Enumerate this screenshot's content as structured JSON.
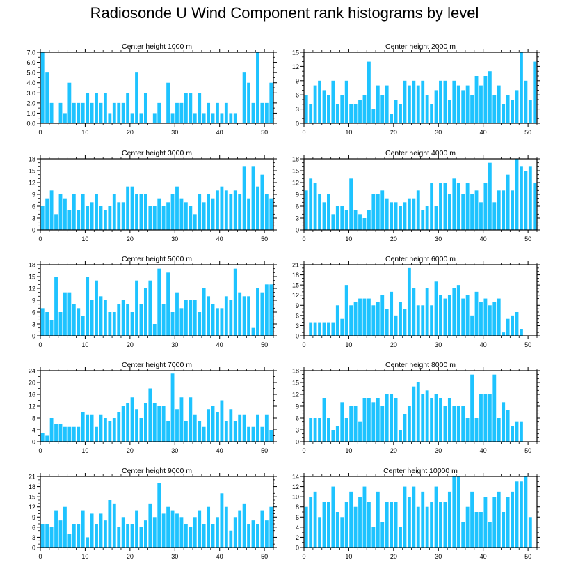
{
  "title": "Radiosonde U Wind Component rank histograms by level",
  "colors": {
    "bar": "#1ec3ff",
    "axis": "#000000"
  },
  "chart_data": [
    {
      "type": "bar",
      "title": "Center height 1000 m",
      "xlabel": "",
      "ylabel": "",
      "xlim": [
        0,
        52
      ],
      "ylim": [
        0,
        7
      ],
      "yticks": [
        0,
        1,
        2,
        3,
        4,
        5,
        6,
        7
      ],
      "ytick_labels": [
        "0.0",
        "1.0",
        "2.0",
        "3.0",
        "4.0",
        "5.0",
        "6.0",
        "7.0"
      ],
      "xticks": [
        0,
        10,
        20,
        30,
        40,
        50
      ],
      "x_start": 0,
      "values": [
        7,
        5,
        2,
        0,
        2,
        1,
        4,
        2,
        2,
        2,
        3,
        2,
        3,
        2,
        3,
        1,
        2,
        2,
        2,
        3,
        1,
        5,
        1,
        3,
        0,
        1,
        2,
        0,
        4,
        1,
        2,
        2,
        3,
        3,
        1,
        3,
        1,
        2,
        1,
        2,
        1,
        2,
        1,
        1,
        0,
        5,
        4,
        2,
        7,
        2,
        2,
        4
      ]
    },
    {
      "type": "bar",
      "title": "Center height 2000 m",
      "xlabel": "",
      "ylabel": "",
      "xlim": [
        0,
        52
      ],
      "ylim": [
        0,
        15
      ],
      "yticks": [
        0,
        3,
        6,
        9,
        12,
        15
      ],
      "ytick_labels": [
        "0",
        "3",
        "6",
        "9",
        "12",
        "15"
      ],
      "xticks": [
        0,
        10,
        20,
        30,
        40,
        50
      ],
      "x_start": 0,
      "values": [
        6,
        4,
        8,
        9,
        7,
        6,
        9,
        4,
        6,
        9,
        4,
        4,
        5,
        6,
        13,
        3,
        8,
        6,
        8,
        2,
        5,
        4,
        9,
        8,
        9,
        8,
        9,
        6,
        4,
        7,
        9,
        9,
        5,
        9,
        8,
        7,
        8,
        6,
        10,
        8,
        10,
        11,
        6,
        8,
        4,
        6,
        5,
        7,
        15,
        9,
        5,
        13
      ]
    },
    {
      "type": "bar",
      "title": "Center height 3000 m",
      "xlabel": "",
      "ylabel": "",
      "xlim": [
        0,
        52
      ],
      "ylim": [
        0,
        18
      ],
      "yticks": [
        0,
        3,
        6,
        9,
        12,
        15,
        18
      ],
      "ytick_labels": [
        "0",
        "3",
        "6",
        "9",
        "12",
        "15",
        "18"
      ],
      "xticks": [
        0,
        10,
        20,
        30,
        40,
        50
      ],
      "x_start": 0,
      "values": [
        6,
        8,
        10,
        4,
        9,
        8,
        5,
        9,
        5,
        9,
        6,
        7,
        9,
        6,
        5,
        6,
        9,
        7,
        7,
        11,
        11,
        9,
        9,
        9,
        6,
        6,
        8,
        6,
        7,
        9,
        11,
        8,
        7,
        6,
        4,
        9,
        7,
        9,
        8,
        10,
        11,
        10,
        9,
        10,
        9,
        16,
        8,
        16,
        11,
        14,
        9,
        8
      ]
    },
    {
      "type": "bar",
      "title": "Center height 4000 m",
      "xlabel": "",
      "ylabel": "",
      "xlim": [
        0,
        52
      ],
      "ylim": [
        0,
        18
      ],
      "yticks": [
        0,
        3,
        6,
        9,
        12,
        15,
        18
      ],
      "ytick_labels": [
        "0",
        "3",
        "6",
        "9",
        "12",
        "15",
        "18"
      ],
      "xticks": [
        0,
        10,
        20,
        30,
        40,
        50
      ],
      "x_start": 0,
      "values": [
        10,
        13,
        12,
        9,
        7,
        9,
        4,
        6,
        6,
        5,
        13,
        5,
        4,
        3,
        5,
        9,
        9,
        10,
        8,
        7,
        7,
        6,
        7,
        8,
        8,
        10,
        5,
        6,
        12,
        6,
        12,
        12,
        9,
        13,
        12,
        9,
        12,
        9,
        10,
        7,
        12,
        17,
        7,
        10,
        10,
        14,
        10,
        18,
        16,
        15,
        16,
        12
      ]
    },
    {
      "type": "bar",
      "title": "Center height 5000 m",
      "xlabel": "",
      "ylabel": "",
      "xlim": [
        0,
        52
      ],
      "ylim": [
        0,
        18
      ],
      "yticks": [
        0,
        3,
        6,
        9,
        12,
        15,
        18
      ],
      "ytick_labels": [
        "0",
        "3",
        "6",
        "9",
        "12",
        "15",
        "18"
      ],
      "xticks": [
        0,
        10,
        20,
        30,
        40,
        50
      ],
      "x_start": 0,
      "values": [
        7,
        6,
        4,
        15,
        6,
        11,
        11,
        8,
        7,
        5,
        15,
        9,
        14,
        10,
        9,
        6,
        6,
        8,
        9,
        8,
        6,
        14,
        8,
        12,
        14,
        3,
        17,
        8,
        16,
        6,
        11,
        7,
        9,
        9,
        9,
        6,
        12,
        10,
        8,
        7,
        7,
        10,
        9,
        17,
        11,
        10,
        10,
        2,
        12,
        11,
        13,
        13
      ]
    },
    {
      "type": "bar",
      "title": "Center height 6000 m",
      "xlabel": "",
      "ylabel": "",
      "xlim": [
        0,
        52
      ],
      "ylim": [
        0,
        21
      ],
      "yticks": [
        0,
        3,
        6,
        9,
        12,
        15,
        18,
        21
      ],
      "ytick_labels": [
        "0",
        "3",
        "6",
        "9",
        "12",
        "15",
        "18",
        "21"
      ],
      "xticks": [
        0,
        10,
        20,
        30,
        40,
        50
      ],
      "x_start": 1,
      "values": [
        4,
        4,
        4,
        4,
        4,
        4,
        9,
        5,
        15,
        9,
        10,
        11,
        11,
        11,
        9,
        10,
        12,
        8,
        13,
        6,
        10,
        8,
        20,
        14,
        9,
        9,
        14,
        9,
        16,
        12,
        11,
        12,
        14,
        15,
        11,
        12,
        6,
        13,
        10,
        11,
        9,
        10,
        11,
        1,
        5,
        6,
        7,
        2
      ]
    },
    {
      "type": "bar",
      "title": "Center height 7000 m",
      "xlabel": "",
      "ylabel": "",
      "xlim": [
        0,
        52
      ],
      "ylim": [
        0,
        24
      ],
      "yticks": [
        0,
        4,
        8,
        12,
        16,
        20,
        24
      ],
      "ytick_labels": [
        "0",
        "4",
        "8",
        "12",
        "16",
        "20",
        "24"
      ],
      "xticks": [
        0,
        10,
        20,
        30,
        40,
        50
      ],
      "x_start": 0,
      "values": [
        3,
        2,
        8,
        6,
        6,
        5,
        5,
        5,
        5,
        10,
        9,
        9,
        5,
        9,
        8,
        7,
        8,
        10,
        12,
        13,
        15,
        11,
        8,
        13,
        18,
        13,
        12,
        12,
        7,
        23,
        11,
        15,
        7,
        15,
        9,
        7,
        5,
        11,
        12,
        10,
        14,
        7,
        11,
        7,
        9,
        9,
        5,
        5,
        9,
        5,
        9,
        4
      ]
    },
    {
      "type": "bar",
      "title": "Center height 8000 m",
      "xlabel": "",
      "ylabel": "",
      "xlim": [
        0,
        52
      ],
      "ylim": [
        0,
        18
      ],
      "yticks": [
        0,
        3,
        6,
        9,
        12,
        15,
        18
      ],
      "ytick_labels": [
        "0",
        "3",
        "6",
        "9",
        "12",
        "15",
        "18"
      ],
      "xticks": [
        0,
        10,
        20,
        30,
        40,
        50
      ],
      "x_start": 1,
      "values": [
        6,
        6,
        6,
        11,
        6,
        3,
        4,
        10,
        6,
        9,
        9,
        5,
        11,
        11,
        10,
        11,
        9,
        12,
        12,
        11,
        3,
        7,
        9,
        14,
        15,
        12,
        13,
        11,
        12,
        11,
        9,
        11,
        9,
        9,
        9,
        6,
        17,
        6,
        12,
        12,
        12,
        17,
        6,
        10,
        8,
        4,
        5,
        5
      ]
    },
    {
      "type": "bar",
      "title": "Center height 9000 m",
      "xlabel": "",
      "ylabel": "",
      "xlim": [
        0,
        52
      ],
      "ylim": [
        0,
        21
      ],
      "yticks": [
        0,
        3,
        6,
        9,
        12,
        15,
        18,
        21
      ],
      "ytick_labels": [
        "0",
        "3",
        "6",
        "9",
        "12",
        "15",
        "18",
        "21"
      ],
      "xticks": [
        0,
        10,
        20,
        30,
        40,
        50
      ],
      "x_start": 0,
      "values": [
        7,
        7,
        6,
        11,
        8,
        12,
        4,
        7,
        7,
        11,
        3,
        10,
        7,
        10,
        8,
        14,
        13,
        6,
        9,
        7,
        7,
        11,
        6,
        8,
        13,
        9,
        19,
        10,
        12,
        11,
        10,
        9,
        7,
        6,
        9,
        11,
        7,
        12,
        7,
        9,
        16,
        12,
        5,
        9,
        11,
        13,
        7,
        8,
        7,
        11,
        8,
        12
      ]
    },
    {
      "type": "bar",
      "title": "Center height 10000 m",
      "xlabel": "",
      "ylabel": "",
      "xlim": [
        0,
        52
      ],
      "ylim": [
        0,
        14
      ],
      "yticks": [
        0,
        2,
        4,
        6,
        8,
        10,
        12,
        14
      ],
      "ytick_labels": [
        "0",
        "2",
        "4",
        "6",
        "8",
        "10",
        "12",
        "14"
      ],
      "xticks": [
        0,
        10,
        20,
        30,
        40,
        50
      ],
      "x_start": 0,
      "values": [
        8,
        10,
        11,
        6,
        9,
        9,
        12,
        7,
        6,
        9,
        11,
        8,
        10,
        12,
        9,
        4,
        11,
        5,
        9,
        9,
        9,
        4,
        12,
        10,
        12,
        8,
        11,
        8,
        9,
        12,
        9,
        9,
        11,
        14,
        14,
        5,
        8,
        11,
        7,
        7,
        10,
        5,
        10,
        11,
        7,
        10,
        11,
        13,
        13,
        14,
        6
      ]
    }
  ]
}
